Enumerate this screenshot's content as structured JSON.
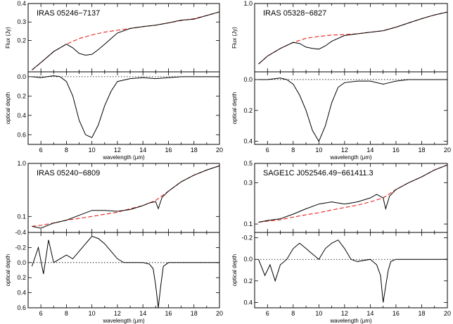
{
  "chart_data": [
    {
      "type": "line",
      "object": "IRAS 05246−7137",
      "xlabel": "wavelength (μm)",
      "xlim": [
        5,
        20
      ],
      "xticks": [
        6,
        8,
        10,
        12,
        14,
        16,
        18,
        20
      ],
      "flux": {
        "ylabel": "Flux (Jy)",
        "ylim": [
          0.03,
          0.4
        ],
        "yticks": [
          0.2,
          0.3,
          0.4
        ],
        "observed": {
          "x": [
            5.3,
            6,
            7,
            8,
            8.5,
            9,
            9.5,
            10,
            10.5,
            11,
            11.5,
            12,
            13,
            14,
            15,
            16,
            17,
            18,
            19,
            20
          ],
          "y": [
            0.04,
            0.08,
            0.14,
            0.18,
            0.16,
            0.13,
            0.12,
            0.125,
            0.15,
            0.18,
            0.21,
            0.24,
            0.265,
            0.275,
            0.283,
            0.295,
            0.31,
            0.315,
            0.335,
            0.355
          ]
        },
        "continuum": {
          "x": [
            5.3,
            6,
            7,
            8,
            9,
            10,
            11,
            12,
            13,
            14,
            15,
            16,
            17,
            18,
            19,
            20
          ],
          "y": [
            0.04,
            0.08,
            0.14,
            0.18,
            0.21,
            0.23,
            0.245,
            0.255,
            0.265,
            0.275,
            0.283,
            0.295,
            0.308,
            0.318,
            0.335,
            0.355
          ]
        }
      },
      "tau": {
        "ylabel": "optical depth",
        "ylim": [
          0.7,
          -0.05
        ],
        "yticks": [
          0.0,
          0.2,
          0.4,
          0.6
        ],
        "x": [
          5.3,
          6,
          7,
          7.5,
          8,
          8.5,
          9,
          9.5,
          10,
          10.5,
          11,
          11.5,
          12,
          13,
          14,
          15,
          16,
          17,
          17.5,
          18,
          19,
          20
        ],
        "y": [
          0.0,
          0.01,
          -0.01,
          0.0,
          0.05,
          0.2,
          0.45,
          0.6,
          0.63,
          0.5,
          0.3,
          0.15,
          0.05,
          0.02,
          0.01,
          0.02,
          0.01,
          0.0,
          0.0,
          0.0,
          0.0,
          0.0
        ]
      }
    },
    {
      "type": "line",
      "object": "IRAS 05328−6827",
      "xlabel": "wavelength (μm)",
      "xlim": [
        5,
        20
      ],
      "xticks": [
        6,
        8,
        10,
        12,
        14,
        16,
        18,
        20
      ],
      "flux": {
        "ylabel": "Flux (Jy)",
        "ylim": [
          0.1,
          1.0
        ],
        "yticks": [
          1.0
        ],
        "log": true,
        "observed": {
          "x": [
            5.3,
            6,
            7,
            8,
            8.5,
            9,
            9.5,
            10,
            10.5,
            11,
            12,
            13,
            14,
            15,
            16,
            17,
            18,
            19,
            20
          ],
          "y": [
            0.13,
            0.17,
            0.22,
            0.27,
            0.26,
            0.23,
            0.22,
            0.215,
            0.24,
            0.28,
            0.34,
            0.36,
            0.38,
            0.4,
            0.45,
            0.52,
            0.6,
            0.68,
            0.75
          ]
        },
        "continuum": {
          "x": [
            5.3,
            6,
            7,
            8,
            9,
            10,
            11,
            12,
            13,
            14,
            15,
            16,
            17,
            18,
            19,
            20
          ],
          "y": [
            0.13,
            0.17,
            0.22,
            0.27,
            0.31,
            0.33,
            0.345,
            0.35,
            0.36,
            0.38,
            0.4,
            0.45,
            0.52,
            0.6,
            0.68,
            0.75
          ]
        }
      },
      "tau": {
        "ylabel": "optical depth",
        "ylim": [
          0.42,
          -0.05
        ],
        "yticks": [
          0.0,
          0.2,
          0.4
        ],
        "x": [
          5.3,
          6,
          7,
          7.5,
          8,
          8.5,
          9,
          9.5,
          10,
          10.5,
          11,
          11.5,
          12,
          13,
          14,
          15,
          15.5,
          16,
          17,
          18,
          19,
          20
        ],
        "y": [
          0.0,
          0.0,
          -0.01,
          0.0,
          0.03,
          0.1,
          0.2,
          0.33,
          0.4,
          0.3,
          0.15,
          0.05,
          0.02,
          0.01,
          0.01,
          0.03,
          0.02,
          0.01,
          0.0,
          0.0,
          0.0,
          0.0
        ]
      }
    },
    {
      "type": "line",
      "object": "IRAS 05240−6809",
      "xlabel": "wavelength (μm)",
      "xlim": [
        5,
        20
      ],
      "xticks": [
        6,
        8,
        10,
        12,
        14,
        16,
        18,
        20
      ],
      "flux": {
        "ylabel": "",
        "ylim": [
          0.05,
          1.0
        ],
        "yticks": [
          0.1,
          1.0
        ],
        "log": true,
        "observed": {
          "x": [
            5.3,
            6,
            7,
            8,
            9,
            10,
            11,
            12,
            13,
            14,
            14.5,
            15,
            15.2,
            15.5,
            16,
            17,
            18,
            19,
            20
          ],
          "y": [
            0.065,
            0.06,
            0.075,
            0.085,
            0.105,
            0.13,
            0.13,
            0.125,
            0.135,
            0.16,
            0.18,
            0.19,
            0.14,
            0.23,
            0.3,
            0.45,
            0.6,
            0.75,
            0.9
          ]
        },
        "continuum": {
          "x": [
            5.3,
            6,
            7,
            8,
            9,
            10,
            11,
            12,
            13,
            14,
            15,
            16,
            17,
            18,
            19,
            20
          ],
          "y": [
            0.065,
            0.068,
            0.075,
            0.085,
            0.092,
            0.1,
            0.11,
            0.12,
            0.14,
            0.16,
            0.2,
            0.3,
            0.45,
            0.6,
            0.75,
            0.9
          ]
        }
      },
      "tau": {
        "ylabel": "optical depth",
        "ylim": [
          0.6,
          -0.4
        ],
        "yticks": [
          -0.4,
          -0.2,
          0.0,
          0.2,
          0.4,
          0.6
        ],
        "x": [
          5.3,
          5.8,
          6.2,
          6.6,
          7,
          7.5,
          8,
          8.5,
          9,
          9.5,
          10,
          10.5,
          11,
          11.5,
          12,
          12.5,
          13,
          14,
          14.5,
          14.8,
          15,
          15.2,
          15.4,
          15.6,
          16,
          17,
          18,
          19,
          20
        ],
        "y": [
          0.05,
          -0.2,
          0.15,
          -0.3,
          0.0,
          -0.05,
          -0.1,
          -0.05,
          -0.15,
          -0.25,
          -0.35,
          -0.32,
          -0.25,
          -0.15,
          -0.05,
          0.0,
          0.0,
          0.0,
          0.02,
          0.08,
          0.3,
          0.6,
          0.3,
          0.05,
          0.0,
          0.0,
          0.0,
          0.0,
          0.0
        ]
      }
    },
    {
      "type": "line",
      "object": "SAGE1C J052546.49−661411.3",
      "xlabel": "wavelength (μm)",
      "xlim": [
        5,
        20
      ],
      "xticks": [
        6,
        8,
        10,
        12,
        14,
        16,
        18,
        20
      ],
      "flux": {
        "ylabel": "",
        "ylim": [
          0.08,
          0.5
        ],
        "yticks": [
          0.1,
          0.3,
          0.5
        ],
        "log": true,
        "observed": {
          "x": [
            5.3,
            6,
            7,
            8,
            9,
            10,
            11,
            12,
            13,
            14,
            14.5,
            15,
            15.2,
            15.5,
            16,
            17,
            18,
            19,
            20
          ],
          "y": [
            0.105,
            0.11,
            0.115,
            0.13,
            0.15,
            0.17,
            0.18,
            0.17,
            0.18,
            0.2,
            0.22,
            0.2,
            0.15,
            0.21,
            0.25,
            0.3,
            0.35,
            0.42,
            0.48
          ]
        },
        "continuum": {
          "x": [
            5.3,
            6,
            7,
            8,
            9,
            10,
            11,
            12,
            13,
            14,
            15,
            16,
            17,
            18,
            19,
            20
          ],
          "y": [
            0.105,
            0.108,
            0.112,
            0.12,
            0.128,
            0.135,
            0.145,
            0.155,
            0.165,
            0.18,
            0.2,
            0.25,
            0.3,
            0.35,
            0.42,
            0.48
          ]
        }
      },
      "tau": {
        "ylabel": "optical depth",
        "ylim": [
          0.45,
          -0.25
        ],
        "yticks": [
          -0.2,
          0.0,
          0.2,
          0.4
        ],
        "x": [
          5.3,
          5.8,
          6.2,
          6.6,
          7,
          7.5,
          8,
          8.5,
          9,
          9.5,
          10,
          10.5,
          11,
          11.5,
          12,
          12.5,
          13,
          14,
          14.5,
          14.8,
          15,
          15.2,
          15.4,
          15.6,
          16,
          17,
          18,
          19,
          20
        ],
        "y": [
          0.0,
          0.15,
          0.05,
          0.2,
          0.05,
          0.0,
          -0.1,
          -0.15,
          -0.1,
          -0.05,
          0.0,
          -0.1,
          -0.15,
          -0.18,
          -0.1,
          0.0,
          0.02,
          0.0,
          0.05,
          0.15,
          0.4,
          0.25,
          0.1,
          0.02,
          0.0,
          0.0,
          0.0,
          0.0,
          0.0
        ]
      }
    }
  ]
}
